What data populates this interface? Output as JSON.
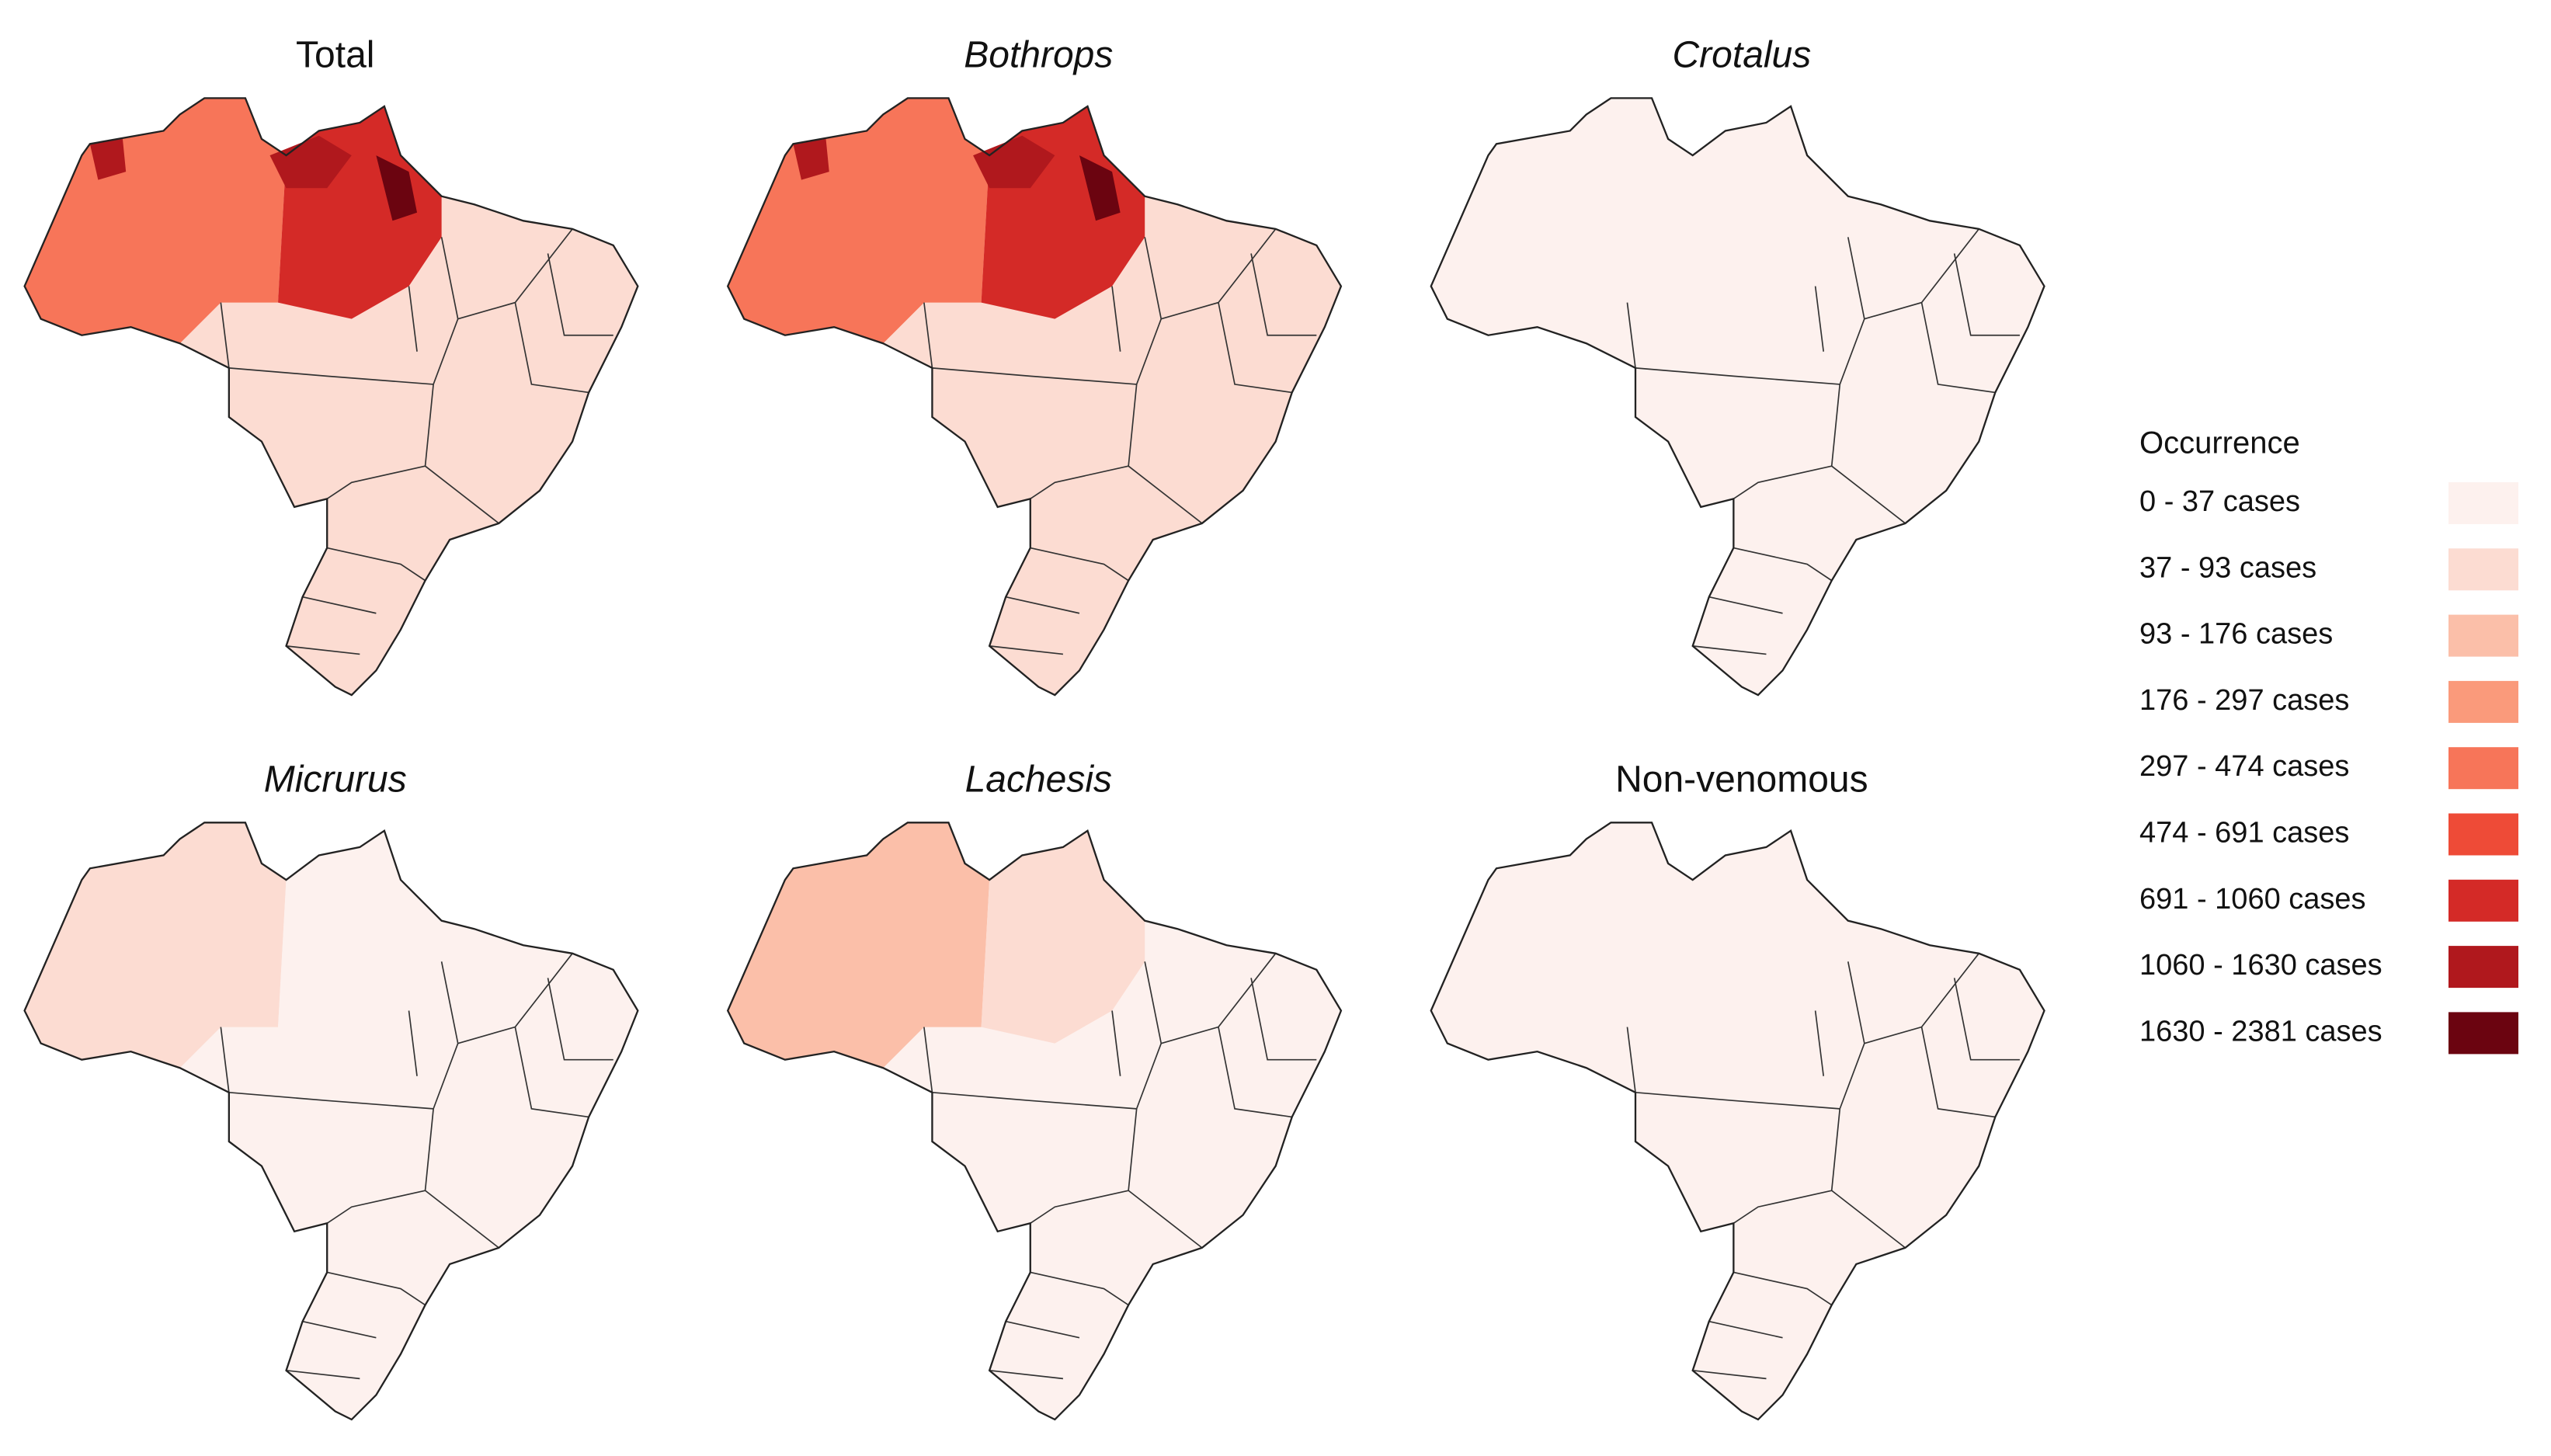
{
  "panels": [
    {
      "title": "Total",
      "italic": false
    },
    {
      "title": "Bothrops",
      "italic": true
    },
    {
      "title": "Crotalus",
      "italic": true
    },
    {
      "title": "Micrurus",
      "italic": true
    },
    {
      "title": "Lachesis",
      "italic": true
    },
    {
      "title": "Non-venomous",
      "italic": false
    }
  ],
  "legend": {
    "title": "Occurrence",
    "items": [
      {
        "label": "0 - 37 cases",
        "color": "#fdf1ee"
      },
      {
        "label": "37 - 93 cases",
        "color": "#fcdcd2"
      },
      {
        "label": "93 - 176 cases",
        "color": "#fbbfa9"
      },
      {
        "label": "176 - 297 cases",
        "color": "#fa9a7b"
      },
      {
        "label": "297 - 474 cases",
        "color": "#f77559"
      },
      {
        "label": "474 - 691 cases",
        "color": "#ee4b37"
      },
      {
        "label": "691 - 1060 cases",
        "color": "#d42a27"
      },
      {
        "label": "1060 - 1630 cases",
        "color": "#b0181d"
      },
      {
        "label": "1630 - 2381 cases",
        "color": "#6b0410"
      }
    ]
  }
}
